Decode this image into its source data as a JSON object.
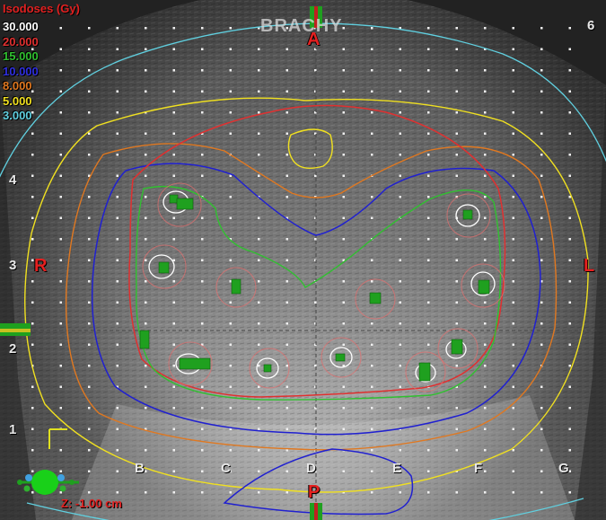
{
  "viewer": {
    "watermark": "BRACHY",
    "z_position": "Z: -1.00 cm"
  },
  "legend": {
    "title": "Isodoses (Gy)",
    "levels": [
      {
        "value": "30.000",
        "color": "#ffffff"
      },
      {
        "value": "20.000",
        "color": "#e03030"
      },
      {
        "value": "15.000",
        "color": "#30c030"
      },
      {
        "value": "10.000",
        "color": "#2020d0"
      },
      {
        "value": "8.000",
        "color": "#e07820"
      },
      {
        "value": "5.000",
        "color": "#f0e020"
      },
      {
        "value": "3.000",
        "color": "#60d0e0"
      }
    ]
  },
  "orientation": {
    "anterior": "A",
    "posterior": "P",
    "right": "R",
    "left": "L"
  },
  "grid": {
    "columns": [
      "B",
      "C",
      "D",
      "E",
      "F",
      "G"
    ],
    "rows": [
      "6",
      "4",
      "3",
      "2",
      "1"
    ]
  },
  "colors": {
    "isodose_30": "#ffffff",
    "isodose_20": "#e03030",
    "isodose_15": "#30c030",
    "isodose_10": "#2020d0",
    "isodose_8": "#e07820",
    "isodose_5": "#f0e020",
    "isodose_3": "#60d0e0",
    "seed": "#1fa01f"
  }
}
